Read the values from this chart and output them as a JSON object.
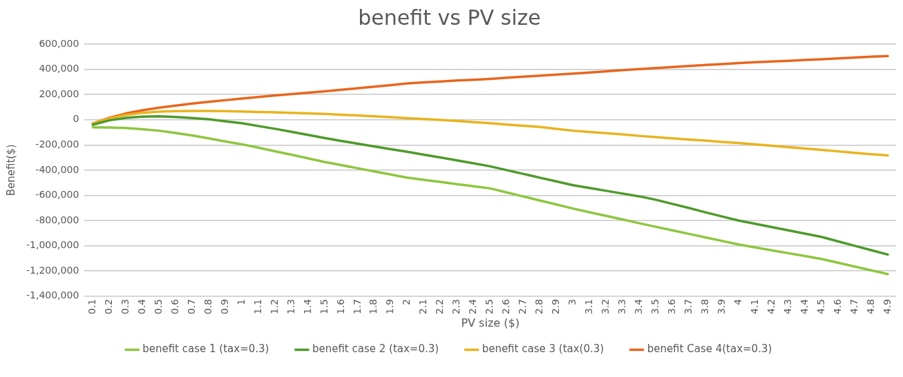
{
  "chart_data": {
    "type": "line",
    "title": "benefit vs PV size",
    "xlabel": "PV size ($)",
    "ylabel": "Benefit($)",
    "categories": [
      "0.1",
      "0.2",
      "0.3",
      "0.4",
      "0.5",
      "0.6",
      "0.7",
      "0.8",
      "0.9",
      "1",
      "1.1",
      "1.2",
      "1.3",
      "1.4",
      "1.5",
      "1.6",
      "1.7",
      "1.8",
      "1.9",
      "2",
      "2.1",
      "2.2",
      "2.3",
      "2.4",
      "2.5",
      "2.6",
      "2.7",
      "2.8",
      "2.9",
      "3",
      "3.1",
      "3.2",
      "3.3",
      "3.4",
      "3.5",
      "3.6",
      "3.7",
      "3.8",
      "3.9",
      "4",
      "4.1",
      "4.2",
      "4.3",
      "4.4",
      "4.5",
      "4.6",
      "4.7",
      "4.8",
      "4.9"
    ],
    "series": [
      {
        "name": "benefit case 1 (tax=0.3)",
        "color": "#8dc63f",
        "values": [
          -60000,
          -62000,
          -66000,
          -75000,
          -87000,
          -105000,
          -125000,
          -148000,
          -172000,
          -195000,
          -222000,
          -250000,
          -278000,
          -306000,
          -335000,
          -360000,
          -385000,
          -410000,
          -435000,
          -460000,
          -477000,
          -494000,
          -511000,
          -528000,
          -545000,
          -577000,
          -609000,
          -641000,
          -673000,
          -705000,
          -734000,
          -763000,
          -792000,
          -821000,
          -850000,
          -878000,
          -906000,
          -934000,
          -962000,
          -990000,
          -1013000,
          -1036000,
          -1059000,
          -1082000,
          -1105000,
          -1135000,
          -1165000,
          -1195000,
          -1225000
        ]
      },
      {
        "name": "benefit case 2 (tax=0.3)",
        "color": "#4e9a2a",
        "values": [
          -40000,
          -5000,
          15000,
          25000,
          27000,
          22000,
          14000,
          4000,
          -12000,
          -28000,
          -50000,
          -72000,
          -96000,
          -120000,
          -145000,
          -168000,
          -190000,
          -212000,
          -234000,
          -255000,
          -278000,
          -300000,
          -323000,
          -346000,
          -370000,
          -400000,
          -430000,
          -460000,
          -490000,
          -520000,
          -542000,
          -564000,
          -586000,
          -608000,
          -635000,
          -668000,
          -700000,
          -735000,
          -768000,
          -800000,
          -826000,
          -852000,
          -878000,
          -904000,
          -930000,
          -965000,
          -1000000,
          -1035000,
          -1070000
        ]
      },
      {
        "name": "benefit case 3 (tax(0.3)",
        "color": "#e9b31f",
        "values": [
          -30000,
          10000,
          38000,
          55000,
          64000,
          68000,
          70000,
          70000,
          68000,
          65000,
          62000,
          58000,
          54000,
          50000,
          46000,
          40000,
          34000,
          27000,
          20000,
          12000,
          5000,
          -2000,
          -10000,
          -19000,
          -28000,
          -38000,
          -48000,
          -58000,
          -72000,
          -87000,
          -97000,
          -107000,
          -117000,
          -128000,
          -138000,
          -148000,
          -157000,
          -166000,
          -176000,
          -185000,
          -196000,
          -207000,
          -218000,
          -229000,
          -240000,
          -251000,
          -262000,
          -273000,
          -283000
        ]
      },
      {
        "name": "benefit Case 4(tax=0.3)",
        "color": "#e8661e",
        "values": [
          -30000,
          15000,
          50000,
          75000,
          95000,
          112000,
          128000,
          142000,
          155000,
          168000,
          180000,
          192000,
          203000,
          214000,
          226000,
          238000,
          250000,
          262000,
          275000,
          288000,
          296000,
          304000,
          311000,
          317000,
          324000,
          333000,
          342000,
          350000,
          358000,
          366000,
          375000,
          384000,
          393000,
          402000,
          410000,
          418000,
          426000,
          434000,
          442000,
          450000,
          456000,
          462000,
          468000,
          474000,
          480000,
          487000,
          494000,
          500000,
          505000
        ]
      }
    ],
    "ylim": [
      -1400000,
      600000
    ],
    "yticks": [
      {
        "value": -1400000,
        "label": "-1,400,000"
      },
      {
        "value": -1200000,
        "label": "-1,200,000"
      },
      {
        "value": -1000000,
        "label": "-1,000,000"
      },
      {
        "value": -800000,
        "label": "-800,000"
      },
      {
        "value": -600000,
        "label": "-600,000"
      },
      {
        "value": -400000,
        "label": "-400,000"
      },
      {
        "value": -200000,
        "label": "-200,000"
      },
      {
        "value": 0,
        "label": "0"
      },
      {
        "value": 200000,
        "label": "200,000"
      },
      {
        "value": 400000,
        "label": "400,000"
      },
      {
        "value": 600000,
        "label": "600,000"
      }
    ],
    "grid": "y",
    "legend": "bottom",
    "marker": "none",
    "line_style": "solid"
  }
}
